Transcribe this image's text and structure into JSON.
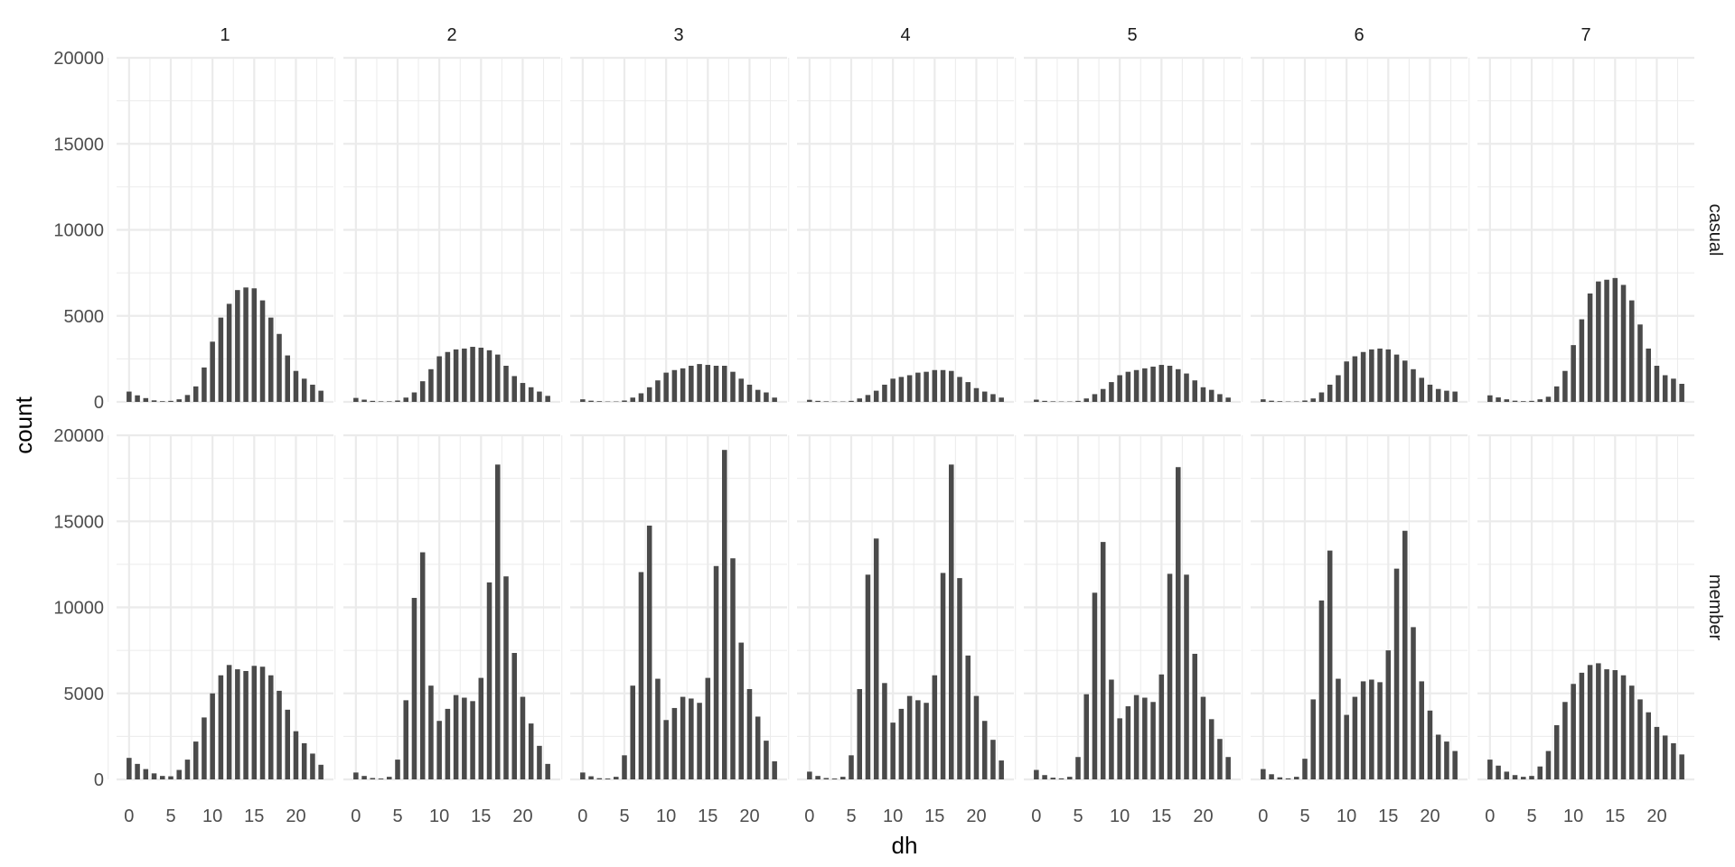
{
  "chart_data": {
    "type": "bar",
    "xlabel": "dh",
    "ylabel": "count",
    "xlim": [
      -1.5,
      24.5
    ],
    "ylim": [
      0,
      20000
    ],
    "x_ticks": [
      0,
      5,
      10,
      15,
      20
    ],
    "y_ticks": [
      0,
      5000,
      10000,
      15000,
      20000
    ],
    "grid": true,
    "bar_color": "#4a4a4a",
    "grid_color": "#ebebeb",
    "columns": [
      "1",
      "2",
      "3",
      "4",
      "5",
      "6",
      "7"
    ],
    "rows": [
      "casual",
      "member"
    ],
    "x": [
      0,
      1,
      2,
      3,
      4,
      5,
      6,
      7,
      8,
      9,
      10,
      11,
      12,
      13,
      14,
      15,
      16,
      17,
      18,
      19,
      20,
      21,
      22,
      23
    ],
    "panels": [
      {
        "column": "1",
        "row": "casual",
        "values": [
          600,
          380,
          220,
          90,
          40,
          60,
          150,
          400,
          900,
          2000,
          3500,
          4900,
          5700,
          6500,
          6650,
          6600,
          5900,
          4900,
          3950,
          2700,
          1800,
          1350,
          1000,
          650
        ]
      },
      {
        "column": "2",
        "row": "casual",
        "values": [
          230,
          130,
          60,
          30,
          30,
          80,
          250,
          550,
          1200,
          1900,
          2650,
          2900,
          3050,
          3100,
          3200,
          3150,
          3000,
          2750,
          2100,
          1500,
          1100,
          850,
          600,
          350
        ]
      },
      {
        "column": "3",
        "row": "casual",
        "values": [
          150,
          70,
          40,
          20,
          20,
          80,
          250,
          500,
          850,
          1250,
          1700,
          1850,
          1950,
          2100,
          2200,
          2150,
          2100,
          2100,
          1750,
          1350,
          1000,
          700,
          550,
          250
        ]
      },
      {
        "column": "4",
        "row": "casual",
        "values": [
          120,
          60,
          30,
          20,
          20,
          60,
          200,
          400,
          650,
          1000,
          1350,
          1450,
          1550,
          1700,
          1750,
          1850,
          1850,
          1800,
          1450,
          1150,
          800,
          600,
          450,
          250
        ]
      },
      {
        "column": "5",
        "row": "casual",
        "values": [
          130,
          60,
          30,
          20,
          20,
          60,
          200,
          450,
          750,
          1150,
          1550,
          1750,
          1850,
          1950,
          2050,
          2150,
          2100,
          1900,
          1650,
          1250,
          850,
          700,
          450,
          250
        ]
      },
      {
        "column": "6",
        "row": "casual",
        "values": [
          150,
          70,
          40,
          20,
          20,
          80,
          200,
          550,
          1000,
          1550,
          2350,
          2650,
          2900,
          3050,
          3100,
          3050,
          2750,
          2400,
          1900,
          1400,
          1000,
          750,
          650,
          600
        ]
      },
      {
        "column": "7",
        "row": "casual",
        "values": [
          380,
          260,
          150,
          70,
          40,
          60,
          150,
          300,
          900,
          1800,
          3300,
          4800,
          6300,
          7000,
          7100,
          7200,
          6800,
          5900,
          4500,
          3100,
          2100,
          1550,
          1350,
          1050
        ]
      },
      {
        "column": "1",
        "row": "member",
        "values": [
          1250,
          900,
          600,
          350,
          200,
          180,
          550,
          1150,
          2200,
          3600,
          5000,
          6050,
          6650,
          6400,
          6300,
          6600,
          6550,
          6050,
          5150,
          4050,
          2800,
          2100,
          1500,
          850
        ]
      },
      {
        "column": "2",
        "row": "member",
        "values": [
          400,
          200,
          80,
          50,
          150,
          1150,
          4600,
          10550,
          13200,
          5450,
          3400,
          4100,
          4900,
          4750,
          4550,
          5900,
          11450,
          18300,
          11800,
          7350,
          4800,
          3250,
          1950,
          900
        ]
      },
      {
        "column": "3",
        "row": "member",
        "values": [
          400,
          180,
          70,
          50,
          150,
          1400,
          5450,
          12050,
          14750,
          5850,
          3450,
          4150,
          4800,
          4700,
          4450,
          5900,
          12400,
          19150,
          12850,
          7950,
          5250,
          3650,
          2250,
          1050
        ]
      },
      {
        "column": "4",
        "row": "member",
        "values": [
          450,
          200,
          80,
          50,
          150,
          1400,
          5250,
          11900,
          14000,
          5600,
          3300,
          4100,
          4850,
          4600,
          4450,
          6050,
          12000,
          18300,
          11700,
          7200,
          4850,
          3400,
          2300,
          1100
        ]
      },
      {
        "column": "5",
        "row": "member",
        "values": [
          550,
          250,
          100,
          60,
          150,
          1300,
          4950,
          10850,
          13800,
          5800,
          3550,
          4250,
          4900,
          4750,
          4500,
          6100,
          11950,
          18150,
          11900,
          7300,
          4800,
          3500,
          2350,
          1300
        ]
      },
      {
        "column": "6",
        "row": "member",
        "values": [
          600,
          300,
          120,
          60,
          150,
          1200,
          4650,
          10400,
          13300,
          5850,
          3750,
          4800,
          5700,
          5800,
          5650,
          7500,
          12250,
          14450,
          8850,
          5700,
          4000,
          2600,
          2200,
          1650
        ]
      },
      {
        "column": "7",
        "row": "member",
        "values": [
          1150,
          800,
          450,
          250,
          150,
          200,
          750,
          1650,
          3150,
          4500,
          5550,
          6200,
          6650,
          6750,
          6400,
          6350,
          6050,
          5450,
          4650,
          3900,
          3050,
          2550,
          2100,
          1450
        ]
      }
    ]
  }
}
